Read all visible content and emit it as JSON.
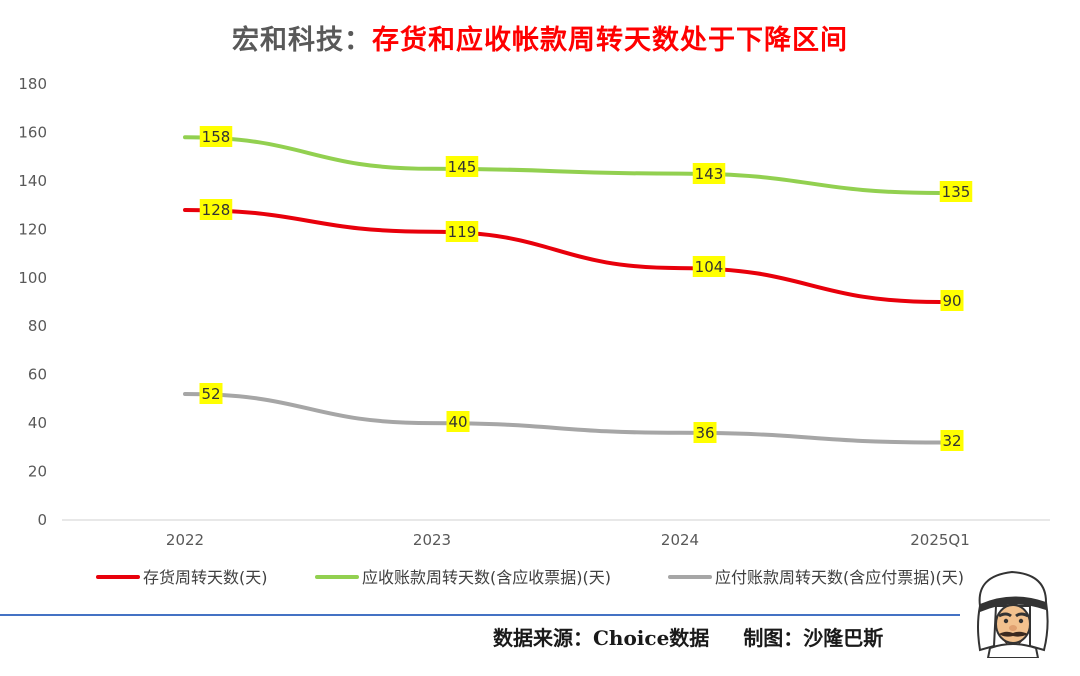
{
  "title": {
    "company": "宏和科技：",
    "headline": "存货和应收帐款周转天数处于下降区间"
  },
  "footer": {
    "source": "数据来源：Choice数据",
    "author": "制图：沙隆巴斯"
  },
  "mascot": {
    "icon": "cartoon-arab-man-avatar"
  },
  "chart_data": {
    "type": "line",
    "title": "宏和科技：存货和应收帐款周转天数处于下降区间",
    "categories": [
      "2022",
      "2023",
      "2024",
      "2025Q1"
    ],
    "ylim": [
      0,
      180
    ],
    "yticks": [
      "0",
      "20",
      "40",
      "60",
      "80",
      "100",
      "120",
      "140",
      "160",
      "180"
    ],
    "grid": false,
    "legend_position": "bottom",
    "series": [
      {
        "name": "存货周转天数(天)",
        "values": [
          128,
          119,
          104,
          90
        ],
        "color": "#e8000b"
      },
      {
        "name": "应收账款周转天数(含应收票据)(天)",
        "values": [
          158,
          145,
          143,
          135
        ],
        "color": "#92d050"
      },
      {
        "name": "应付账款周转天数(含应付票据)(天)",
        "values": [
          52,
          40,
          36,
          32
        ],
        "color": "#a6a6a6"
      }
    ],
    "data_label_background": "#ffff00"
  }
}
